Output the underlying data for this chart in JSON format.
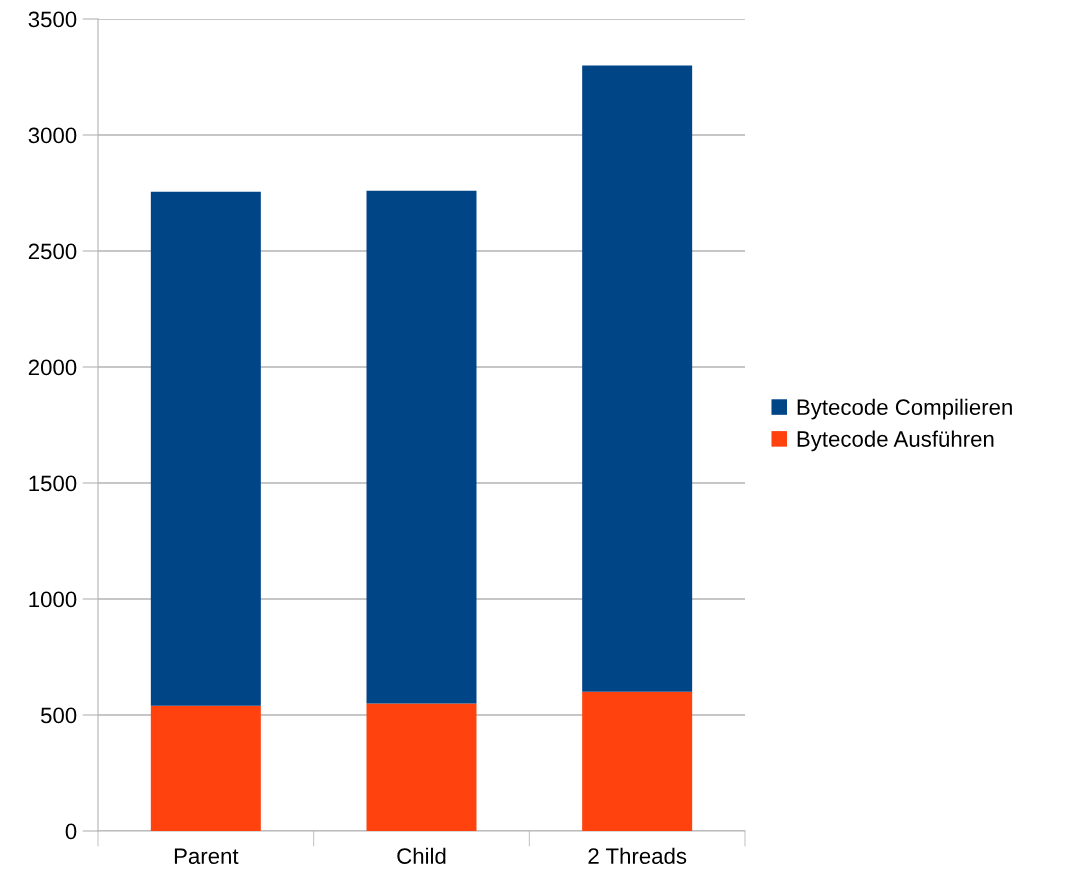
{
  "chart_data": {
    "type": "bar",
    "stacked": true,
    "categories": [
      "Parent",
      "Child",
      "2 Threads"
    ],
    "series": [
      {
        "name": "Bytecode Ausführen",
        "color": "#ff420e",
        "values": [
          540,
          550,
          600
        ]
      },
      {
        "name": "Bytecode Compilieren",
        "color": "#004586",
        "values": [
          2215,
          2210,
          2700
        ]
      }
    ],
    "ylim": [
      0,
      3500
    ],
    "yticks": [
      0,
      500,
      1000,
      1500,
      2000,
      2500,
      3000,
      3500
    ],
    "grid": "y",
    "legend": "right"
  }
}
